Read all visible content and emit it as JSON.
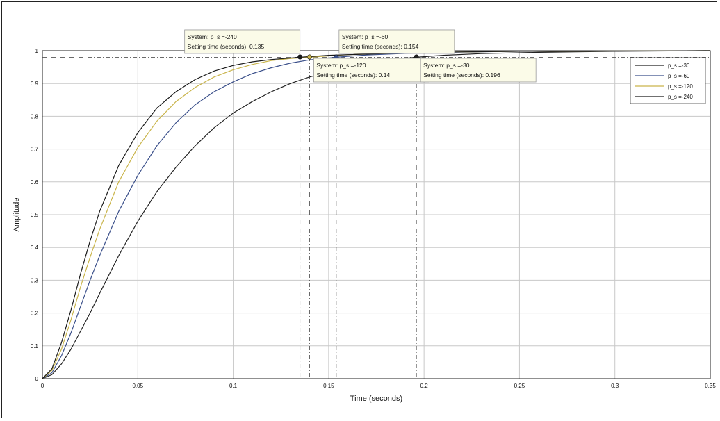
{
  "chart_data": {
    "type": "line",
    "xlabel": "Time (seconds)",
    "ylabel": "Amplitude",
    "xlim": [
      0,
      0.35
    ],
    "ylim": [
      0,
      1
    ],
    "xticks": [
      0,
      0.05,
      0.1,
      0.15,
      0.2,
      0.25,
      0.3,
      0.35
    ],
    "xtick_labels": [
      "0",
      "0.05",
      "0.1",
      "0.15",
      "0.2",
      "0.25",
      "0.3",
      "0.35"
    ],
    "yticks": [
      0,
      0.1,
      0.2,
      0.3,
      0.4,
      0.5,
      0.6,
      0.7,
      0.8,
      0.9,
      1
    ],
    "ytick_labels": [
      "0",
      "0.1",
      "0.2",
      "0.3",
      "0.4",
      "0.5",
      "0.6",
      "0.7",
      "0.8",
      "0.9",
      "1"
    ],
    "grid": true,
    "legend_position": "top-right",
    "settling_band": 0.98,
    "series": [
      {
        "name": "p_s =-30",
        "color": "#222222",
        "settling_time": 0.196,
        "marker_y": 0.981,
        "points": [
          [
            0,
            0
          ],
          [
            0.005,
            0.012
          ],
          [
            0.01,
            0.045
          ],
          [
            0.015,
            0.09
          ],
          [
            0.02,
            0.145
          ],
          [
            0.025,
            0.2
          ],
          [
            0.03,
            0.26
          ],
          [
            0.04,
            0.375
          ],
          [
            0.05,
            0.48
          ],
          [
            0.06,
            0.57
          ],
          [
            0.07,
            0.645
          ],
          [
            0.08,
            0.71
          ],
          [
            0.09,
            0.765
          ],
          [
            0.1,
            0.81
          ],
          [
            0.11,
            0.845
          ],
          [
            0.12,
            0.875
          ],
          [
            0.13,
            0.9
          ],
          [
            0.14,
            0.92
          ],
          [
            0.15,
            0.935
          ],
          [
            0.16,
            0.95
          ],
          [
            0.17,
            0.96
          ],
          [
            0.18,
            0.97
          ],
          [
            0.19,
            0.977
          ],
          [
            0.196,
            0.98
          ],
          [
            0.21,
            0.986
          ],
          [
            0.23,
            0.991
          ],
          [
            0.26,
            0.995
          ],
          [
            0.3,
            0.998
          ],
          [
            0.35,
            1.0
          ]
        ]
      },
      {
        "name": "p_s =-60",
        "color": "#3a4f8a",
        "settling_time": 0.154,
        "marker_y": 0.981,
        "points": [
          [
            0,
            0
          ],
          [
            0.005,
            0.018
          ],
          [
            0.01,
            0.07
          ],
          [
            0.015,
            0.14
          ],
          [
            0.02,
            0.22
          ],
          [
            0.025,
            0.3
          ],
          [
            0.03,
            0.375
          ],
          [
            0.04,
            0.51
          ],
          [
            0.05,
            0.62
          ],
          [
            0.06,
            0.71
          ],
          [
            0.07,
            0.78
          ],
          [
            0.08,
            0.835
          ],
          [
            0.09,
            0.875
          ],
          [
            0.1,
            0.905
          ],
          [
            0.11,
            0.93
          ],
          [
            0.12,
            0.948
          ],
          [
            0.13,
            0.962
          ],
          [
            0.14,
            0.972
          ],
          [
            0.154,
            0.98
          ],
          [
            0.17,
            0.987
          ],
          [
            0.2,
            0.994
          ],
          [
            0.25,
            0.998
          ],
          [
            0.35,
            1.0
          ]
        ]
      },
      {
        "name": "p_s =-120",
        "color": "#c9b44a",
        "settling_time": 0.14,
        "marker_y": 0.981,
        "points": [
          [
            0,
            0
          ],
          [
            0.005,
            0.025
          ],
          [
            0.01,
            0.09
          ],
          [
            0.015,
            0.18
          ],
          [
            0.02,
            0.28
          ],
          [
            0.025,
            0.37
          ],
          [
            0.03,
            0.455
          ],
          [
            0.04,
            0.6
          ],
          [
            0.05,
            0.705
          ],
          [
            0.06,
            0.785
          ],
          [
            0.07,
            0.845
          ],
          [
            0.08,
            0.888
          ],
          [
            0.09,
            0.92
          ],
          [
            0.1,
            0.942
          ],
          [
            0.11,
            0.958
          ],
          [
            0.12,
            0.97
          ],
          [
            0.13,
            0.976
          ],
          [
            0.14,
            0.98
          ],
          [
            0.16,
            0.988
          ],
          [
            0.2,
            0.995
          ],
          [
            0.25,
            0.998
          ],
          [
            0.35,
            1.0
          ]
        ]
      },
      {
        "name": "p_s =-240",
        "color": "#1a1a1a",
        "settling_time": 0.135,
        "marker_y": 0.981,
        "points": [
          [
            0,
            0
          ],
          [
            0.005,
            0.03
          ],
          [
            0.01,
            0.11
          ],
          [
            0.015,
            0.21
          ],
          [
            0.02,
            0.32
          ],
          [
            0.025,
            0.42
          ],
          [
            0.03,
            0.51
          ],
          [
            0.04,
            0.65
          ],
          [
            0.05,
            0.75
          ],
          [
            0.06,
            0.825
          ],
          [
            0.07,
            0.875
          ],
          [
            0.08,
            0.912
          ],
          [
            0.09,
            0.938
          ],
          [
            0.1,
            0.955
          ],
          [
            0.11,
            0.966
          ],
          [
            0.12,
            0.973
          ],
          [
            0.135,
            0.98
          ],
          [
            0.15,
            0.986
          ],
          [
            0.2,
            0.995
          ],
          [
            0.25,
            0.998
          ],
          [
            0.35,
            1.0
          ]
        ]
      }
    ],
    "datatips": [
      {
        "series_index": 3,
        "system": "System: p_s =-240",
        "setting": "Setting time (seconds): 0.135",
        "anchor": "above-left"
      },
      {
        "series_index": 1,
        "system": "System: p_s =-60",
        "setting": "Setting time (seconds): 0.154",
        "anchor": "above-right"
      },
      {
        "series_index": 2,
        "system": "System: p_s =-120",
        "setting": "Setting time (seconds): 0.14",
        "anchor": "below-right"
      },
      {
        "series_index": 0,
        "system": "System: p_s =-30",
        "setting": "Setting time (seconds): 0.196",
        "anchor": "below-right"
      }
    ]
  }
}
